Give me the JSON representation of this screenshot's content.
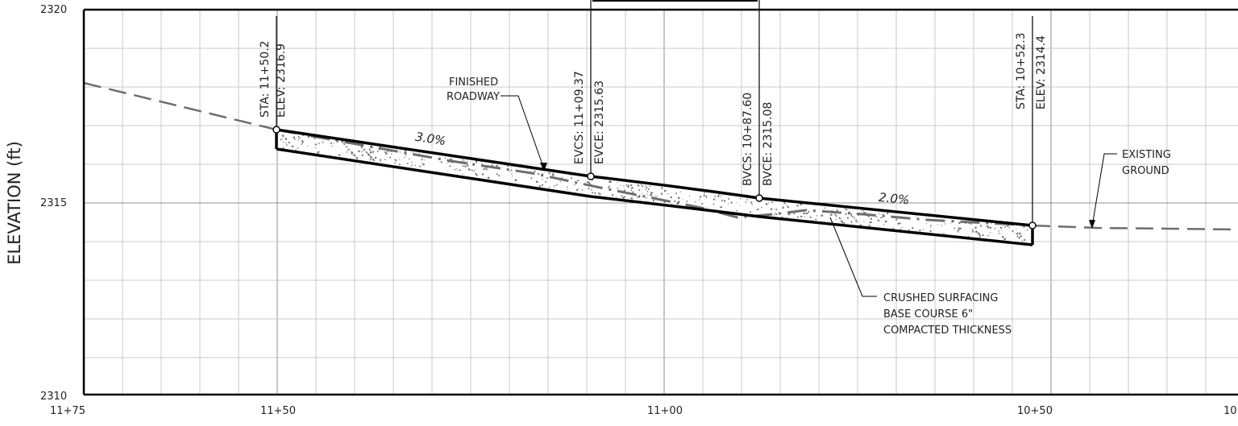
{
  "axes": {
    "y_label": "ELEVATION (ft)",
    "y_ticks": [
      "2320",
      "2315",
      "2310"
    ],
    "x_ticks": [
      "11+75",
      "11+50",
      "11+00",
      "10+50",
      "10"
    ]
  },
  "stations": [
    {
      "sta": "STA: 11+50.2",
      "elev": "ELEV: 2316.9"
    },
    {
      "sta": "EVCS: 11+09.37",
      "elev": "EVCE: 2315.63"
    },
    {
      "sta": "BVCS: 10+87.60",
      "elev": "BVCE: 2315.08"
    },
    {
      "sta": "STA: 10+52.3",
      "elev": "ELEV: 2314.4"
    }
  ],
  "grades": [
    "3.0%",
    "2.0%"
  ],
  "callouts": {
    "finished_roadway": [
      "FINISHED",
      "ROADWAY"
    ],
    "existing_ground": [
      "EXISTING",
      "GROUND"
    ],
    "base_course": [
      "CRUSHED SURFACING",
      "BASE COURSE 6\"",
      "COMPACTED THICKNESS"
    ]
  },
  "colors": {
    "roadway": "#000000",
    "existing_ground": "#6e6e6e",
    "grid": "#c8c8c8"
  }
}
